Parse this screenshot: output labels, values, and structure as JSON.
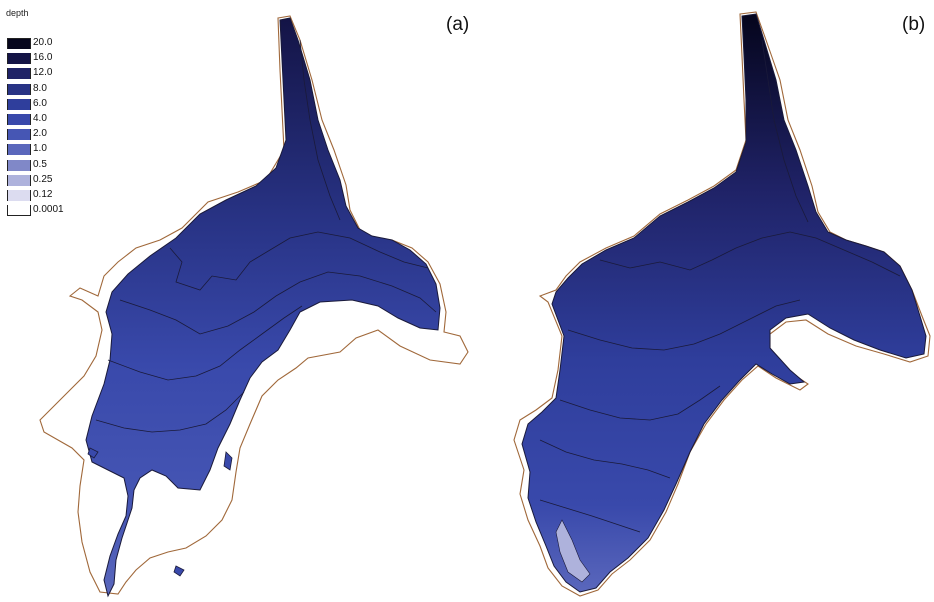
{
  "legend": {
    "title": "depth",
    "entries": [
      {
        "label": "20.0",
        "color": "#05051c"
      },
      {
        "label": "16.0",
        "color": "#141446"
      },
      {
        "label": "12.0",
        "color": "#1f2266"
      },
      {
        "label": "8.0",
        "color": "#283385"
      },
      {
        "label": "6.0",
        "color": "#2f3e9c"
      },
      {
        "label": "4.0",
        "color": "#3949ab"
      },
      {
        "label": "2.0",
        "color": "#4656b4"
      },
      {
        "label": "1.0",
        "color": "#5a67bc"
      },
      {
        "label": "0.5",
        "color": "#8088c8"
      },
      {
        "label": "0.25",
        "color": "#aeb2dc"
      },
      {
        "label": "0.12",
        "color": "#dcdcf0"
      },
      {
        "label": "0.0001",
        "color": "#ffffff"
      }
    ]
  },
  "panels": [
    {
      "label": "(a)"
    },
    {
      "label": "(b)"
    }
  ],
  "colors": {
    "outline": "#a0683a",
    "contour": "#1a1a3a"
  }
}
